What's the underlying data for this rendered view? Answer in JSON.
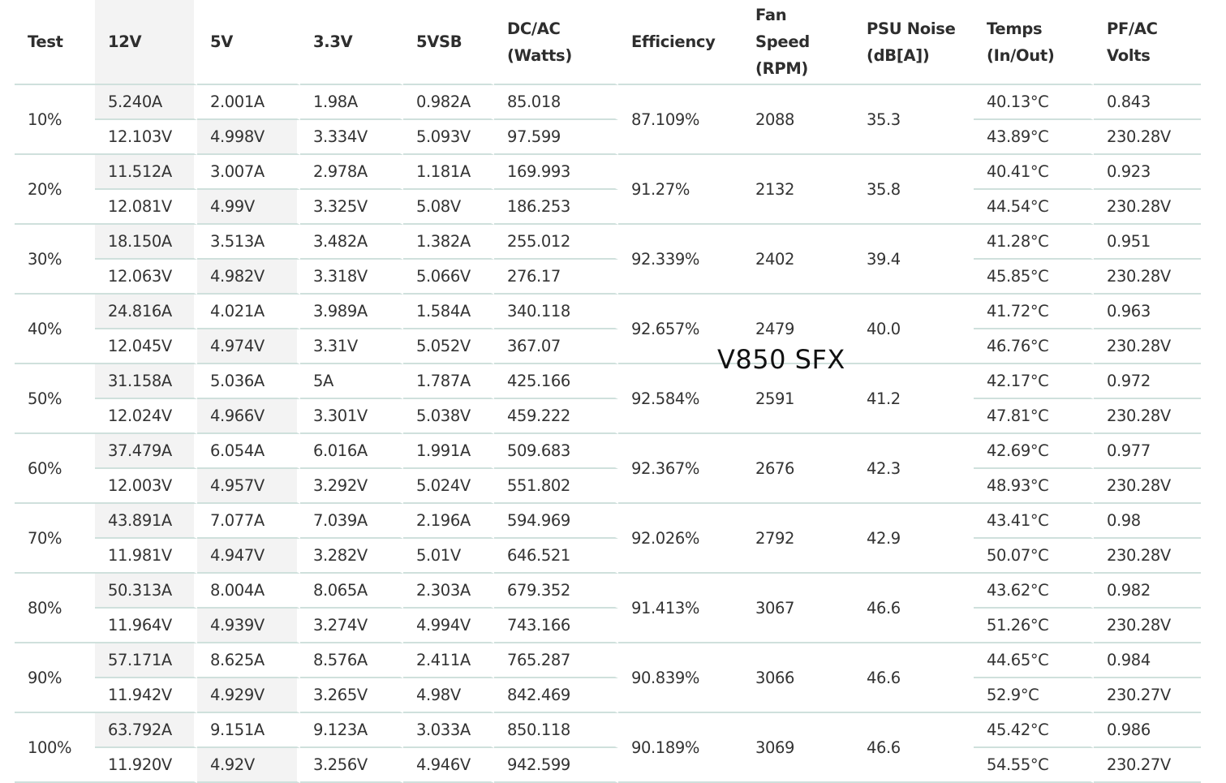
{
  "chart_data": {
    "type": "table",
    "title": "V850 SFX",
    "headers": [
      [
        "Test"
      ],
      [
        "12V"
      ],
      [
        "5V"
      ],
      [
        "3.3V"
      ],
      [
        "5VSB"
      ],
      [
        "DC/AC",
        "(Watts)"
      ],
      [
        "Efficiency"
      ],
      [
        "Fan",
        "Speed",
        "(RPM)"
      ],
      [
        "PSU Noise",
        "(dB[A])"
      ],
      [
        "Temps",
        "(In/Out)"
      ],
      [
        "PF/AC",
        "Volts"
      ]
    ],
    "rows": [
      {
        "test": "10%",
        "a12": "5.240A",
        "v12": "12.103V",
        "a5": "2.001A",
        "v5": "4.998V",
        "a33": "1.98A",
        "v33": "3.334V",
        "asb": "0.982A",
        "vsb": "5.093V",
        "dc": "85.018",
        "ac": "97.599",
        "eff": "87.109%",
        "fan": "2088",
        "noise": "35.3",
        "tin": "40.13°C",
        "tout": "43.89°C",
        "pf": "0.843",
        "volts": "230.28V"
      },
      {
        "test": "20%",
        "a12": "11.512A",
        "v12": "12.081V",
        "a5": "3.007A",
        "v5": "4.99V",
        "a33": "2.978A",
        "v33": "3.325V",
        "asb": "1.181A",
        "vsb": "5.08V",
        "dc": "169.993",
        "ac": "186.253",
        "eff": "91.27%",
        "fan": "2132",
        "noise": "35.8",
        "tin": "40.41°C",
        "tout": "44.54°C",
        "pf": "0.923",
        "volts": "230.28V"
      },
      {
        "test": "30%",
        "a12": "18.150A",
        "v12": "12.063V",
        "a5": "3.513A",
        "v5": "4.982V",
        "a33": "3.482A",
        "v33": "3.318V",
        "asb": "1.382A",
        "vsb": "5.066V",
        "dc": "255.012",
        "ac": "276.17",
        "eff": "92.339%",
        "fan": "2402",
        "noise": "39.4",
        "tin": "41.28°C",
        "tout": "45.85°C",
        "pf": "0.951",
        "volts": "230.28V"
      },
      {
        "test": "40%",
        "a12": "24.816A",
        "v12": "12.045V",
        "a5": "4.021A",
        "v5": "4.974V",
        "a33": "3.989A",
        "v33": "3.31V",
        "asb": "1.584A",
        "vsb": "5.052V",
        "dc": "340.118",
        "ac": "367.07",
        "eff": "92.657%",
        "fan": "2479",
        "noise": "40.0",
        "tin": "41.72°C",
        "tout": "46.76°C",
        "pf": "0.963",
        "volts": "230.28V"
      },
      {
        "test": "50%",
        "a12": "31.158A",
        "v12": "12.024V",
        "a5": "5.036A",
        "v5": "4.966V",
        "a33": "5A",
        "v33": "3.301V",
        "asb": "1.787A",
        "vsb": "5.038V",
        "dc": "425.166",
        "ac": "459.222",
        "eff": "92.584%",
        "fan": "2591",
        "noise": "41.2",
        "tin": "42.17°C",
        "tout": "47.81°C",
        "pf": "0.972",
        "volts": "230.28V"
      },
      {
        "test": "60%",
        "a12": "37.479A",
        "v12": "12.003V",
        "a5": "6.054A",
        "v5": "4.957V",
        "a33": "6.016A",
        "v33": "3.292V",
        "asb": "1.991A",
        "vsb": "5.024V",
        "dc": "509.683",
        "ac": "551.802",
        "eff": "92.367%",
        "fan": "2676",
        "noise": "42.3",
        "tin": "42.69°C",
        "tout": "48.93°C",
        "pf": "0.977",
        "volts": "230.28V"
      },
      {
        "test": "70%",
        "a12": "43.891A",
        "v12": "11.981V",
        "a5": "7.077A",
        "v5": "4.947V",
        "a33": "7.039A",
        "v33": "3.282V",
        "asb": "2.196A",
        "vsb": "5.01V",
        "dc": "594.969",
        "ac": "646.521",
        "eff": "92.026%",
        "fan": "2792",
        "noise": "42.9",
        "tin": "43.41°C",
        "tout": "50.07°C",
        "pf": "0.98",
        "volts": "230.28V"
      },
      {
        "test": "80%",
        "a12": "50.313A",
        "v12": "11.964V",
        "a5": "8.004A",
        "v5": "4.939V",
        "a33": "8.065A",
        "v33": "3.274V",
        "asb": "2.303A",
        "vsb": "4.994V",
        "dc": "679.352",
        "ac": "743.166",
        "eff": "91.413%",
        "fan": "3067",
        "noise": "46.6",
        "tin": "43.62°C",
        "tout": "51.26°C",
        "pf": "0.982",
        "volts": "230.28V"
      },
      {
        "test": "90%",
        "a12": "57.171A",
        "v12": "11.942V",
        "a5": "8.625A",
        "v5": "4.929V",
        "a33": "8.576A",
        "v33": "3.265V",
        "asb": "2.411A",
        "vsb": "4.98V",
        "dc": "765.287",
        "ac": "842.469",
        "eff": "90.839%",
        "fan": "3066",
        "noise": "46.6",
        "tin": "44.65°C",
        "tout": "52.9°C",
        "pf": "0.984",
        "volts": "230.27V"
      },
      {
        "test": "100%",
        "a12": "63.792A",
        "v12": "11.920V",
        "a5": "9.151A",
        "v5": "4.92V",
        "a33": "9.123A",
        "v33": "3.256V",
        "asb": "3.033A",
        "vsb": "4.946V",
        "dc": "850.118",
        "ac": "942.599",
        "eff": "90.189%",
        "fan": "3069",
        "noise": "46.6",
        "tin": "45.42°C",
        "tout": "54.55°C",
        "pf": "0.986",
        "volts": "230.27V"
      }
    ]
  },
  "colors": {
    "text": "#333333",
    "shade": "#f3f3f3",
    "rule": "#cfe0dc"
  }
}
